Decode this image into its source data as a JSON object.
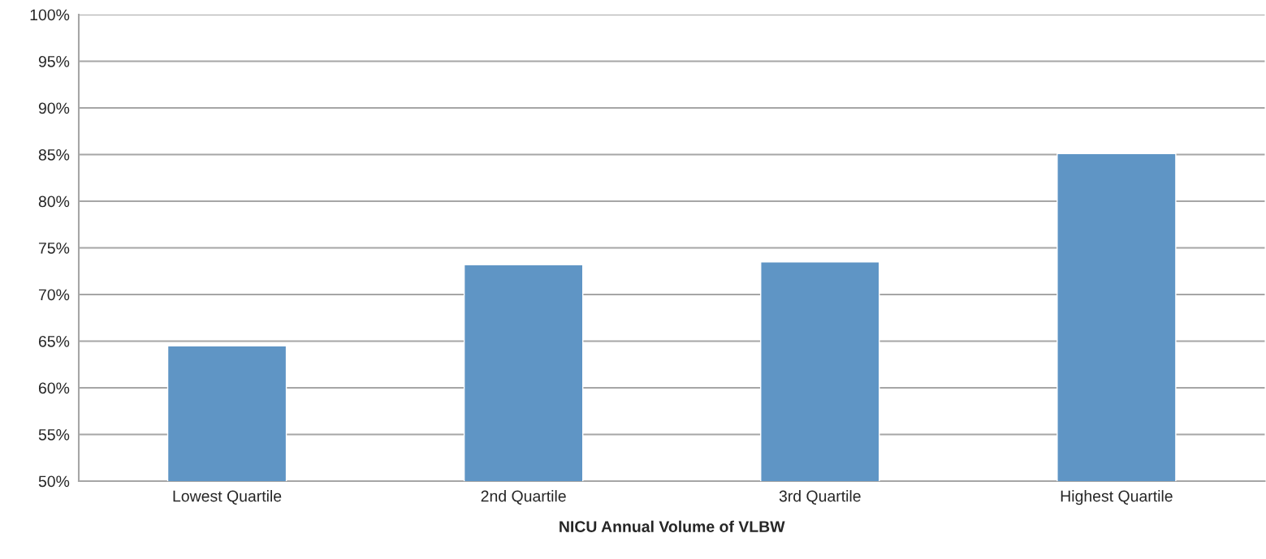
{
  "chart_data": {
    "type": "bar",
    "xlabel": "NICU Annual Volume of VLBW",
    "categories": [
      "Lowest Quartile",
      "2nd Quartile",
      "3rd Quartile",
      "Highest Quartile"
    ],
    "values": [
      64.5,
      73.2,
      73.5,
      85.1
    ],
    "color": "#5f95c5",
    "ylim": [
      50,
      100
    ],
    "yticks": [
      {
        "value": 50,
        "label": "50%"
      },
      {
        "value": 55,
        "label": "55%"
      },
      {
        "value": 60,
        "label": "60%"
      },
      {
        "value": 65,
        "label": "65%"
      },
      {
        "value": 70,
        "label": "70%"
      },
      {
        "value": 75,
        "label": "75%"
      },
      {
        "value": 80,
        "label": "80%"
      },
      {
        "value": 85,
        "label": "85%"
      },
      {
        "value": 90,
        "label": "90%"
      },
      {
        "value": 95,
        "label": "95%"
      },
      {
        "value": 100,
        "label": "100%"
      }
    ],
    "grid": "y"
  }
}
